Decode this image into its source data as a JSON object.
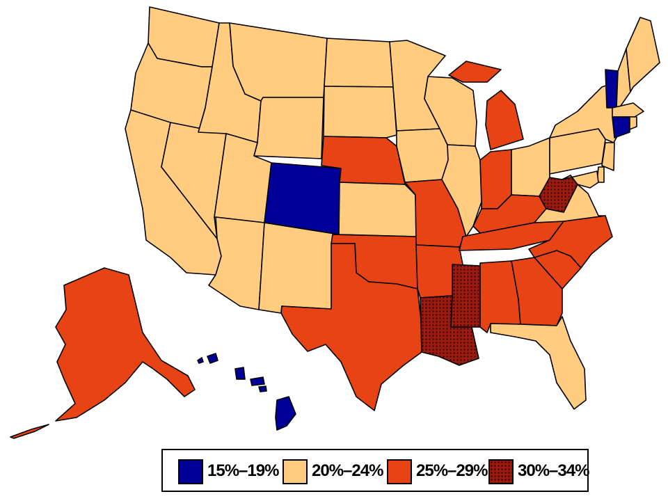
{
  "categories": [
    {
      "id": "c15",
      "label": "15%–19%",
      "color": "#000099",
      "pattern": false
    },
    {
      "id": "c20",
      "label": "20%–24%",
      "color": "#FFCC80",
      "pattern": false
    },
    {
      "id": "c25",
      "label": "25%–29%",
      "color": "#E84315",
      "pattern": false
    },
    {
      "id": "c30",
      "label": "30%–34%",
      "color": "#9B1B10",
      "pattern": true
    }
  ],
  "states": {
    "WA": "c20",
    "OR": "c20",
    "CA": "c20",
    "NV": "c20",
    "ID": "c20",
    "MT": "c20",
    "WY": "c20",
    "UT": "c20",
    "AZ": "c20",
    "CO": "c15",
    "NM": "c20",
    "ND": "c20",
    "SD": "c20",
    "NE": "c25",
    "KS": "c20",
    "OK": "c25",
    "TX": "c25",
    "MN": "c20",
    "IA": "c20",
    "MO": "c25",
    "AR": "c25",
    "LA": "c30",
    "WI": "c20",
    "IL": "c20",
    "MS": "c30",
    "MI": "c25",
    "IN": "c25",
    "OH": "c20",
    "KY": "c25",
    "TN": "c25",
    "AL": "c25",
    "GA": "c25",
    "FL": "c20",
    "SC": "c25",
    "NC": "c25",
    "VA": "c20",
    "WV": "c30",
    "PA": "c20",
    "NY": "c20",
    "VT": "c15",
    "NH": "c20",
    "ME": "c20",
    "MA": "c20",
    "CT": "c15",
    "RI": "c20",
    "NJ": "c20",
    "DE": "c20",
    "MD": "c20",
    "AK": "c25",
    "HI": "c15"
  }
}
